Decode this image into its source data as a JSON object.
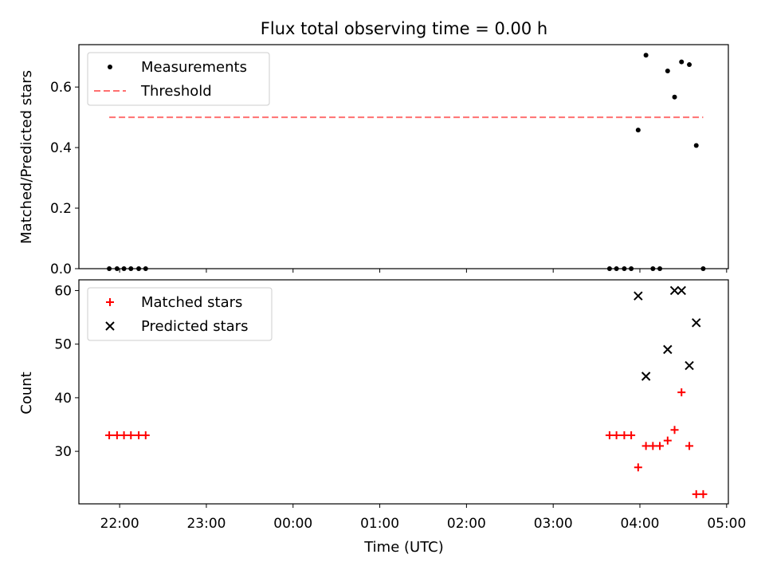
{
  "chart_data": {
    "title": "Flux total observing time = 0.00 h",
    "xlabel": "Time (UTC)",
    "x_tick_labels": [
      "22:00",
      "23:00",
      "00:00",
      "01:00",
      "02:00",
      "03:00",
      "04:00",
      "05:00"
    ],
    "x_tick_hours": [
      22,
      23,
      24,
      25,
      26,
      27,
      28,
      29
    ],
    "xlim_hours": [
      21.53,
      29.02
    ],
    "panels": [
      {
        "name": "ratio",
        "type": "scatter",
        "ylabel": "Matched/Predicted stars",
        "ylim": [
          0,
          0.74
        ],
        "y_ticks": [
          0.0,
          0.2,
          0.4,
          0.6
        ],
        "y_tick_labels": [
          "0.0",
          "0.2",
          "0.4",
          "0.6"
        ],
        "legend_position": "top-left",
        "series": [
          {
            "name": "Measurements",
            "marker": "dot",
            "color": "#000000",
            "x_hours": [
              21.88,
              21.97,
              22.05,
              22.13,
              22.22,
              22.3,
              27.65,
              27.73,
              27.82,
              27.9,
              27.98,
              28.07,
              28.15,
              28.23,
              28.32,
              28.4,
              28.48,
              28.57,
              28.65,
              28.73
            ],
            "y": [
              0,
              0,
              0,
              0,
              0,
              0,
              0,
              0,
              0,
              0,
              0.458,
              0.705,
              0,
              0,
              0.653,
              0.567,
              0.683,
              0.674,
              0.407,
              0
            ]
          },
          {
            "name": "Threshold",
            "marker": "dashed-line",
            "color": "#ff7070",
            "x_hours": [
              21.88,
              28.73
            ],
            "y": [
              0.5,
              0.5
            ]
          }
        ]
      },
      {
        "name": "count",
        "type": "scatter",
        "ylabel": "Count",
        "ylim": [
          20.2,
          62.0
        ],
        "y_ticks": [
          30,
          40,
          50,
          60
        ],
        "y_tick_labels": [
          "30",
          "40",
          "50",
          "60"
        ],
        "legend_position": "top-left",
        "series": [
          {
            "name": "Matched stars",
            "marker": "plus",
            "color": "#ff0000",
            "x_hours": [
              21.88,
              21.97,
              22.05,
              22.13,
              22.22,
              22.3,
              27.65,
              27.73,
              27.82,
              27.9,
              27.98,
              28.07,
              28.15,
              28.23,
              28.32,
              28.4,
              28.48,
              28.57,
              28.65,
              28.73
            ],
            "y": [
              33,
              33,
              33,
              33,
              33,
              33,
              33,
              33,
              33,
              33,
              27,
              31,
              31,
              31,
              32,
              34,
              41,
              31,
              22,
              22
            ]
          },
          {
            "name": "Predicted stars",
            "marker": "x",
            "color": "#000000",
            "x_hours": [
              27.98,
              28.07,
              28.32,
              28.4,
              28.48,
              28.57,
              28.65
            ],
            "y": [
              59,
              44,
              49,
              60,
              60,
              46,
              54
            ]
          }
        ]
      }
    ]
  }
}
